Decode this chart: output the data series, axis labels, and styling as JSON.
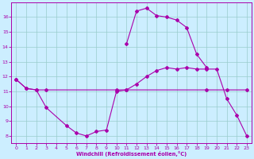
{
  "xlabel": "Windchill (Refroidissement éolien,°C)",
  "bg_color": "#cceeff",
  "line_color": "#aa00aa",
  "grid_color": "#99cccc",
  "xlim": [
    -0.5,
    23.5
  ],
  "ylim": [
    7.5,
    17.0
  ],
  "xticks": [
    0,
    1,
    2,
    3,
    4,
    5,
    6,
    7,
    8,
    9,
    10,
    11,
    12,
    13,
    14,
    15,
    16,
    17,
    18,
    19,
    20,
    21,
    22,
    23
  ],
  "yticks": [
    8,
    9,
    10,
    11,
    12,
    13,
    14,
    15,
    16
  ],
  "flat_x": [
    0,
    1,
    2,
    3,
    10,
    11,
    19,
    21,
    23
  ],
  "flat_y": [
    11.8,
    11.2,
    11.1,
    11.1,
    11.1,
    11.1,
    11.1,
    11.1,
    11.1
  ],
  "lower_x": [
    0,
    1,
    2,
    3,
    5,
    6,
    7,
    8,
    9,
    10,
    11,
    12,
    13,
    14,
    15,
    16,
    17,
    18,
    19,
    20,
    21,
    22,
    23
  ],
  "lower_y": [
    11.8,
    11.2,
    11.1,
    9.9,
    8.7,
    8.2,
    8.0,
    8.3,
    8.4,
    11.0,
    11.1,
    11.5,
    12.0,
    12.4,
    12.6,
    12.5,
    12.6,
    12.5,
    12.5,
    12.5,
    10.5,
    9.4,
    8.0
  ],
  "upper_x": [
    11,
    12,
    13,
    14,
    15,
    16,
    17,
    18,
    19
  ],
  "upper_y": [
    14.2,
    16.4,
    16.6,
    16.1,
    16.0,
    15.8,
    15.3,
    13.5,
    12.6
  ]
}
